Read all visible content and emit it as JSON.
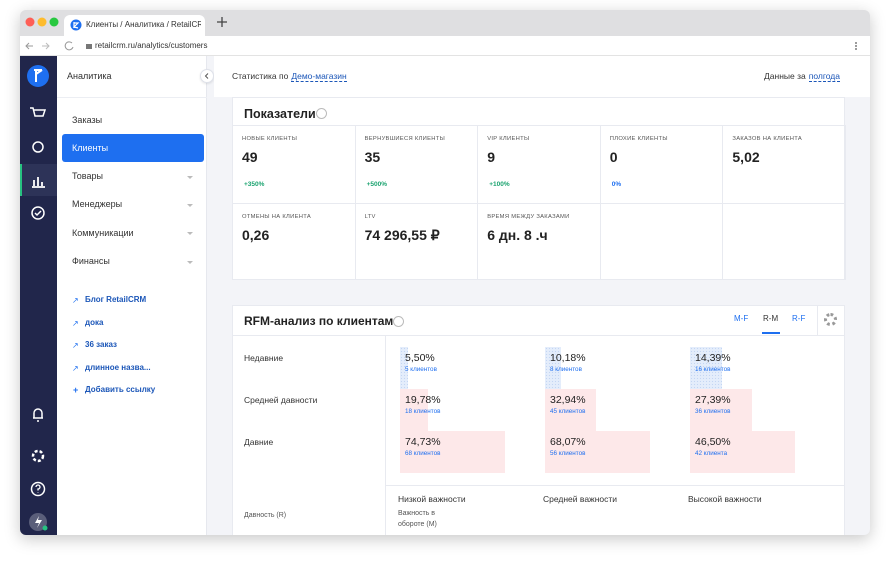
{
  "browser": {
    "tab_title": "Клиенты / Аналитика / RetailCR",
    "url": "retailcrm.ru/analytics/customers"
  },
  "menu": {
    "title": "Аналитика",
    "items": [
      {
        "label": "Заказы"
      },
      {
        "label": "Клиенты",
        "active": true
      },
      {
        "label": "Товары",
        "expandable": true
      },
      {
        "label": "Менеджеры",
        "expandable": true
      },
      {
        "label": "Коммуникации",
        "expandable": true
      },
      {
        "label": "Финансы",
        "expandable": true
      }
    ],
    "links": [
      "Блог RetailCRM",
      "дока",
      "36 заказ",
      "длинное назва..."
    ],
    "add_link": "Добавить ссылку"
  },
  "topbar": {
    "prefix": "Статистика по",
    "store": "Демо-магазин",
    "period_prefix": "Данные за",
    "period": "полгода"
  },
  "metrics": {
    "title": "Показатели",
    "items": [
      {
        "label": "НОВЫЕ КЛИЕНТЫ",
        "value": "49",
        "change": "+350%"
      },
      {
        "label": "ВЕРНУВШИЕСЯ КЛИЕНТЫ",
        "value": "35",
        "change": "+500%"
      },
      {
        "label": "VIP КЛИЕНТЫ",
        "value": "9",
        "change": "+100%"
      },
      {
        "label": "ПЛОХИЕ КЛИЕНТЫ",
        "value": "0",
        "change": "0%"
      },
      {
        "label": "ЗАКАЗОВ НА КЛИЕНТА",
        "value": "5,02"
      },
      {
        "label": "ОТМЕНЫ НА КЛИЕНТА",
        "value": "0,26"
      },
      {
        "label": "LTV",
        "value": "74 296,55 ₽"
      },
      {
        "label": "ВРЕМЯ МЕЖДУ ЗАКАЗАМИ",
        "value": "6 дн. 8 .ч"
      }
    ]
  },
  "rfm": {
    "title": "RFM-анализ по клиентам",
    "tabs": [
      {
        "label": "M-F"
      },
      {
        "label": "R-M",
        "active": true
      },
      {
        "label": "R-F"
      }
    ],
    "rows": [
      {
        "label": "Недавние",
        "color": "#e4edfb"
      },
      {
        "label": "Средней давности",
        "color": "#fde8e9"
      },
      {
        "label": "Давние",
        "color": "#fde8e9"
      }
    ],
    "columns": [
      "Низкой важности",
      "Средней важности",
      "Высокой важности"
    ],
    "cells": [
      [
        {
          "value": 5.5,
          "value_label": "5,50%",
          "clients": "5 клиентов"
        },
        {
          "value": 10.18,
          "value_label": "10,18%",
          "clients": "8 клиентов"
        },
        {
          "value": 14.39,
          "value_label": "14,39%",
          "clients": "16 клиентов"
        }
      ],
      [
        {
          "value": 19.78,
          "value_label": "19,78%",
          "clients": "18 клиентов"
        },
        {
          "value": 32.94,
          "value_label": "32,94%",
          "clients": "45 клиентов"
        },
        {
          "value": 27.39,
          "value_label": "27,39%",
          "clients": "36 клиентов"
        }
      ],
      [
        {
          "value": 74.73,
          "value_label": "74,73%",
          "clients": "68 клиентов"
        },
        {
          "value": 68.07,
          "value_label": "68,07%",
          "clients": "56 клиентов"
        },
        {
          "value": 46.5,
          "value_label": "46,50%",
          "clients": "42 клиента"
        }
      ]
    ],
    "r_axis": "Давность (R)",
    "m_axis": "Важность в обороте (M)"
  }
}
